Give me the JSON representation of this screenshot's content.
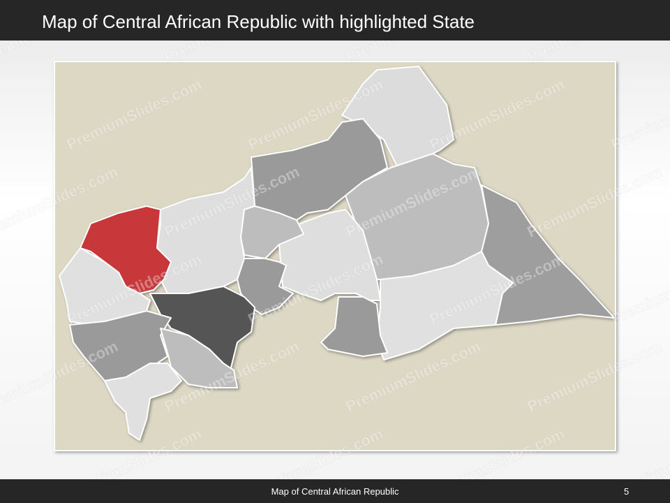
{
  "header": {
    "title": "Map of Central African Republic with highlighted State"
  },
  "footer": {
    "text": "Map of Central African Republic",
    "page_number": "5"
  },
  "watermark": "PremiumSlides.com"
}
